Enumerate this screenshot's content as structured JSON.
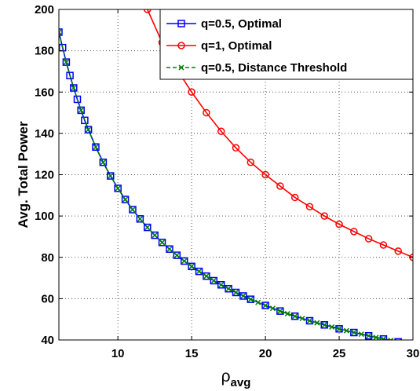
{
  "chart_data": {
    "type": "line",
    "title": "",
    "xlabel": "ρ",
    "xlabel_subscript": "avg",
    "ylabel": "Avg. Total Power",
    "xlim": [
      6,
      30
    ],
    "ylim": [
      40,
      200
    ],
    "xticks": [
      10,
      15,
      20,
      25,
      30
    ],
    "yticks": [
      40,
      60,
      80,
      100,
      120,
      140,
      160,
      180,
      200
    ],
    "grid": true,
    "legend_position": "top-right",
    "series": [
      {
        "name": "q=0.5, Optimal",
        "color": "#0000ff",
        "marker": "square",
        "line_style": "solid",
        "x": [
          6.0,
          6.25,
          6.5,
          6.75,
          7.0,
          7.25,
          7.5,
          7.75,
          8.0,
          8.5,
          9.0,
          9.5,
          10.0,
          10.5,
          11.0,
          11.5,
          12.0,
          12.5,
          13.0,
          13.5,
          14.0,
          14.5,
          15.0,
          15.5,
          16.0,
          16.5,
          17.0,
          17.5,
          18.0,
          18.5,
          19.0,
          20.0,
          21.0,
          22.0,
          23.0,
          24.0,
          25.0,
          26.0,
          27.0,
          28.0,
          29.0,
          30.0
        ],
        "y": [
          189.0,
          181.5,
          174.5,
          168.0,
          162.0,
          156.5,
          151.2,
          146.3,
          141.8,
          133.4,
          126.0,
          119.4,
          113.4,
          108.0,
          103.1,
          98.6,
          94.5,
          90.7,
          87.2,
          84.0,
          81.0,
          78.2,
          75.6,
          73.2,
          70.9,
          68.7,
          66.7,
          64.8,
          63.0,
          61.3,
          59.7,
          56.7,
          54.0,
          51.5,
          49.3,
          47.3,
          45.4,
          43.6,
          42.0,
          40.5,
          39.1,
          37.8
        ]
      },
      {
        "name": "q=1, Optimal",
        "color": "#ff0000",
        "marker": "circle",
        "line_style": "solid",
        "x": [
          12.0,
          13.0,
          14.0,
          15.0,
          16.0,
          17.0,
          18.0,
          19.0,
          20.0,
          21.0,
          22.0,
          23.0,
          24.0,
          25.0,
          26.0,
          27.0,
          28.0,
          29.0,
          30.0
        ],
        "y": [
          200.0,
          184.0,
          171.0,
          160.0,
          150.0,
          141.0,
          133.0,
          126.0,
          120.0,
          114.5,
          109.0,
          104.5,
          100.0,
          96.0,
          92.5,
          89.0,
          86.0,
          83.0,
          80.0
        ]
      },
      {
        "name": "q=0.5, Distance Threshold",
        "color": "#008000",
        "marker": "x",
        "line_style": "dashed",
        "x": [
          6.0,
          6.5,
          7.0,
          7.5,
          8.0,
          8.5,
          9.0,
          9.5,
          10.0,
          10.5,
          11.0,
          11.5,
          12.0,
          12.5,
          13.0,
          13.5,
          14.0,
          14.5,
          15.0,
          15.5,
          16.0,
          16.5,
          17.0,
          17.5,
          18.0,
          18.5,
          19.0,
          19.5,
          20.0,
          20.5,
          21.0,
          21.5,
          22.0,
          22.5,
          23.0,
          23.5,
          24.0,
          24.5,
          25.0,
          25.5,
          26.0,
          26.5,
          27.0,
          27.5,
          28.0,
          28.5,
          29.0,
          29.5,
          30.0
        ],
        "y": [
          189.0,
          174.5,
          162.0,
          151.2,
          141.8,
          133.4,
          126.0,
          119.4,
          113.4,
          108.0,
          103.1,
          98.6,
          94.5,
          90.7,
          87.2,
          84.0,
          81.0,
          78.2,
          75.6,
          73.2,
          70.9,
          68.7,
          66.7,
          64.8,
          63.0,
          61.3,
          59.7,
          58.2,
          56.7,
          55.3,
          54.0,
          52.7,
          51.5,
          50.4,
          49.3,
          48.3,
          47.3,
          46.3,
          45.4,
          44.5,
          43.6,
          42.8,
          42.0,
          41.2,
          40.5,
          39.8,
          39.1,
          38.5,
          37.8
        ]
      }
    ]
  }
}
